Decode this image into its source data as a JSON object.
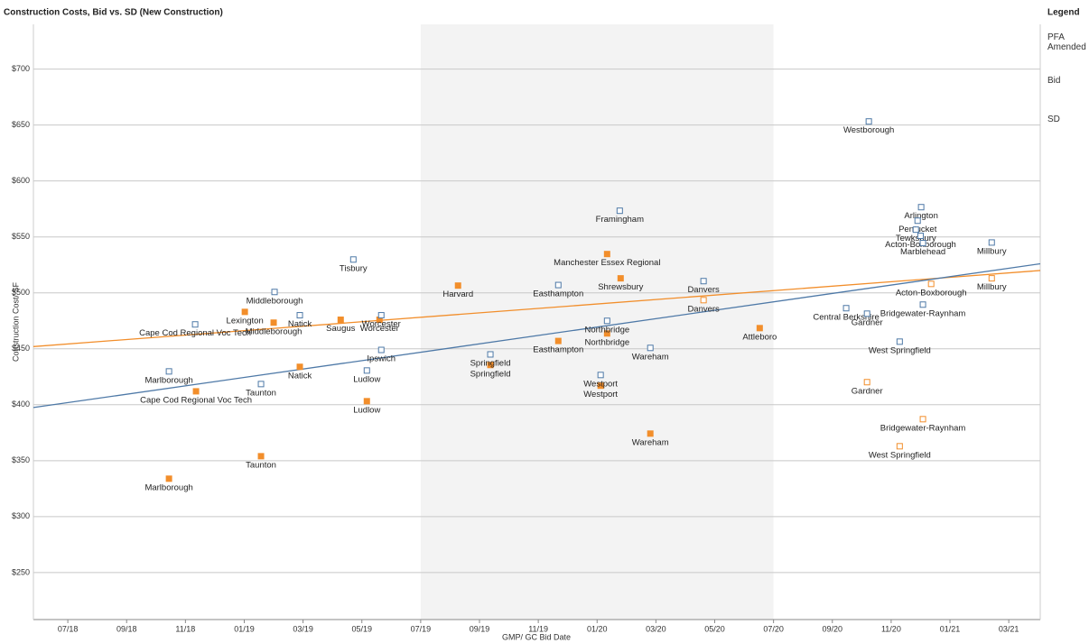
{
  "chart_data": {
    "type": "scatter",
    "title": "Construction Costs, Bid vs. SD (New Construction)",
    "x_label": "GMP/ GC Bid Date",
    "y_label": "Construction Cost/ SF",
    "legend_title": "Legend",
    "legend_position": "right",
    "grid": true,
    "xlim": [
      -1.17,
      33.07
    ],
    "ylim": [
      208,
      740
    ],
    "shaded_range": [
      12,
      24
    ],
    "xticks": [
      {
        "value": 0,
        "label": "07/18"
      },
      {
        "value": 2,
        "label": "09/18"
      },
      {
        "value": 4,
        "label": "11/18"
      },
      {
        "value": 6,
        "label": "01/19"
      },
      {
        "value": 8,
        "label": "03/19"
      },
      {
        "value": 10,
        "label": "05/19"
      },
      {
        "value": 12,
        "label": "07/19"
      },
      {
        "value": 14,
        "label": "09/19"
      },
      {
        "value": 16,
        "label": "11/19"
      },
      {
        "value": 18,
        "label": "01/20"
      },
      {
        "value": 20,
        "label": "03/20"
      },
      {
        "value": 22,
        "label": "05/20"
      },
      {
        "value": 24,
        "label": "07/20"
      },
      {
        "value": 26,
        "label": "09/20"
      },
      {
        "value": 28,
        "label": "11/20"
      },
      {
        "value": 30,
        "label": "01/21"
      },
      {
        "value": 32,
        "label": "03/21"
      }
    ],
    "yticks": [
      {
        "value": 250,
        "label": "$250"
      },
      {
        "value": 300,
        "label": "$300"
      },
      {
        "value": 350,
        "label": "$350"
      },
      {
        "value": 400,
        "label": "$400"
      },
      {
        "value": 450,
        "label": "$450"
      },
      {
        "value": 500,
        "label": "$500"
      },
      {
        "value": 550,
        "label": "$550"
      },
      {
        "value": 600,
        "label": "$600"
      },
      {
        "value": 650,
        "label": "$650"
      },
      {
        "value": 700,
        "label": "$700"
      }
    ],
    "series": [
      {
        "name": "PFA Amended",
        "color": "#f28e2b",
        "filled": false,
        "x": [
          21.62,
          29.36,
          31.42,
          27.18,
          29.08,
          28.29
        ],
        "values": [
          493.5,
          508,
          513,
          420.2,
          387.1,
          362.9
        ],
        "labels": [
          "Danvers",
          "Acton-Boxborough",
          "Millbury",
          "Gardner",
          "Bridgewater-Raynham",
          "West Springfield"
        ]
      },
      {
        "name": "Bid",
        "color": "#f28e2b",
        "filled": true,
        "x": [
          3.44,
          4.36,
          6.57,
          7.0,
          7.89,
          10.17,
          6.02,
          9.28,
          10.6,
          13.27,
          14.37,
          16.68,
          18.34,
          18.8,
          18.34,
          18.12,
          19.81,
          23.53
        ],
        "values": [
          333.9,
          412,
          354,
          473.4,
          433.9,
          403.2,
          483,
          476,
          476,
          506.5,
          435.5,
          457,
          534.7,
          513,
          463.7,
          417,
          374.2,
          468.5
        ],
        "labels": [
          "Marlborough",
          "Cape Cod Regional Voc Tech",
          "Taunton",
          "Middleborough",
          "Natick",
          "Ludlow",
          "Lexington",
          "Saugus",
          "Worcester",
          "Harvard",
          "Springfield",
          "Easthampton",
          "Manchester Essex Regional",
          "Shrewsbury",
          "Northbridge",
          "Westport",
          "Wareham",
          "Attleboro"
        ]
      },
      {
        "name": "SD",
        "color": "#4e79a7",
        "filled": false,
        "x": [
          3.44,
          4.33,
          7.03,
          7.89,
          6.57,
          9.71,
          10.17,
          10.66,
          10.66,
          14.37,
          16.68,
          18.77,
          18.34,
          18.12,
          19.81,
          21.62,
          27.24,
          26.47,
          27.18,
          28.29,
          29.08,
          29.02,
          28.9,
          28.84,
          29.0,
          29.08,
          31.42
        ],
        "values": [
          429.8,
          471.8,
          500.8,
          480,
          418.5,
          529.8,
          430.6,
          449,
          480,
          445,
          507,
          573.4,
          475,
          426.6,
          450.8,
          510.5,
          653.2,
          486.3,
          481.4,
          456.4,
          489.5,
          576.6,
          564.5,
          556.5,
          551,
          544.5,
          545
        ],
        "labels": [
          "Marlborough",
          "Cape Cod Regional Voc Tech",
          "Middleborough",
          "Natick",
          "Taunton",
          "Tisbury",
          "Ludlow",
          "Ipswich",
          "Worcester",
          "Springfield",
          "Easthampton",
          "Framingham",
          "Northbridge",
          "Westport",
          "Wareham",
          "Danvers",
          "Westborough",
          "Central Berkshire",
          "Gardner",
          "West Springfield",
          "Bridgewater-Raynham",
          "Arlington",
          "Pentucket",
          "Tewksbury",
          "Acton-Boxborough",
          "Marblehead",
          "Millbury"
        ]
      }
    ],
    "trendlines": [
      {
        "color": "#f28e2b",
        "x": [
          -1.17,
          33.07
        ],
        "values": [
          452,
          520
        ]
      },
      {
        "color": "#4e79a7",
        "x": [
          -1.17,
          33.07
        ],
        "values": [
          397.5,
          526
        ]
      }
    ]
  }
}
